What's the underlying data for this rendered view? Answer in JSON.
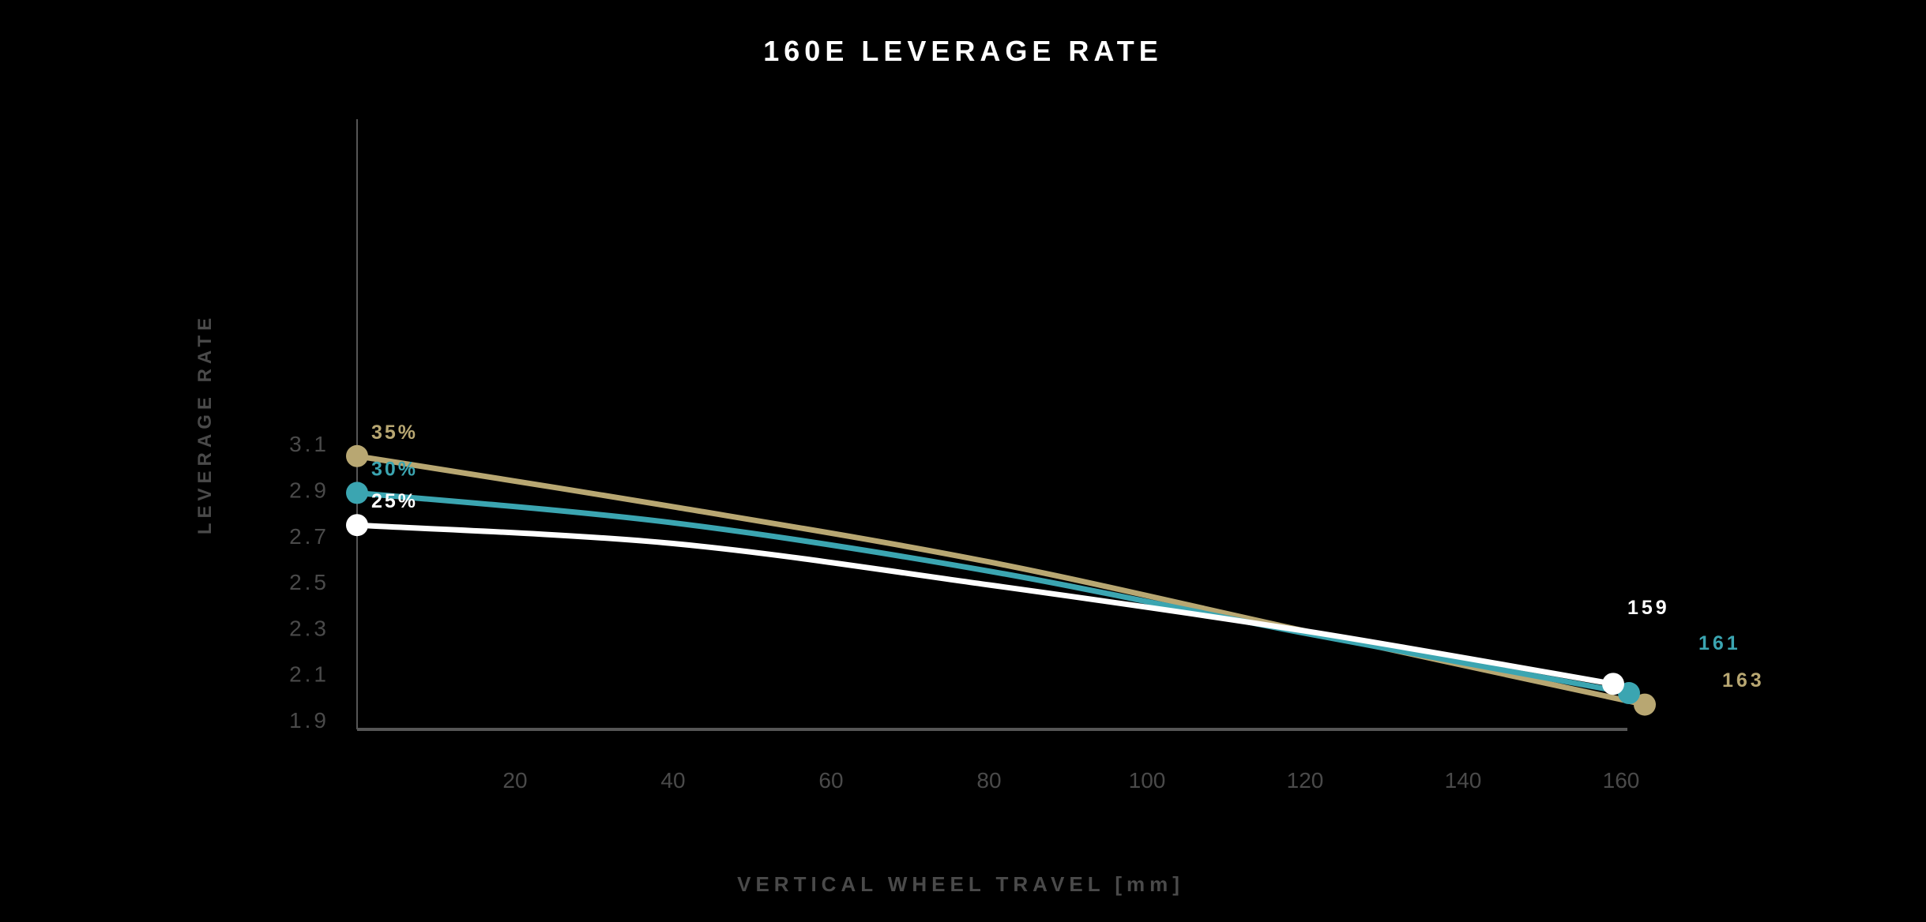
{
  "chart_data": {
    "type": "line",
    "title": "160E LEVERAGE RATE",
    "xlabel": "VERTICAL WHEEL TRAVEL [mm]",
    "ylabel": "LEVERAGE RATE",
    "xlim": [
      0,
      163
    ],
    "ylim": [
      1.88,
      3.2
    ],
    "xticks": [
      20,
      40,
      60,
      80,
      100,
      120,
      140,
      160
    ],
    "yticks": [
      "3.1",
      "2.9",
      "2.7",
      "2.5",
      "2.3",
      "2.1",
      "1.9"
    ],
    "grid": false,
    "series": [
      {
        "name": "35%",
        "end_label": "163",
        "color": "#b8a772",
        "x": [
          0,
          40,
          80,
          120,
          163
        ],
        "y": [
          3.05,
          2.83,
          2.59,
          2.29,
          1.97
        ]
      },
      {
        "name": "30%",
        "end_label": "161",
        "color": "#3ba5b1",
        "x": [
          0,
          40,
          80,
          120,
          161
        ],
        "y": [
          2.89,
          2.76,
          2.55,
          2.28,
          2.02
        ]
      },
      {
        "name": "25%",
        "end_label": "159",
        "color": "#ffffff",
        "x": [
          0,
          40,
          80,
          120,
          159
        ],
        "y": [
          2.75,
          2.67,
          2.49,
          2.29,
          2.06
        ]
      }
    ]
  }
}
